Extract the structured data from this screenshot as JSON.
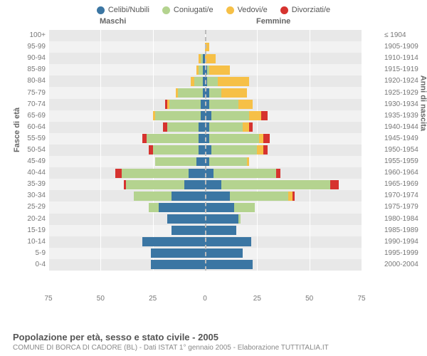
{
  "legend": [
    {
      "label": "Celibi/Nubili",
      "color": "#3b76a3"
    },
    {
      "label": "Coniugati/e",
      "color": "#b4d38f"
    },
    {
      "label": "Vedovi/e",
      "color": "#f6c047"
    },
    {
      "label": "Divorziati/e",
      "color": "#d6332f"
    }
  ],
  "gender_left": "Maschi",
  "gender_right": "Femmine",
  "axis_left_title": "Fasce di età",
  "axis_right_title": "Anni di nascita",
  "x_max": 75,
  "x_ticks_left": [
    75,
    50,
    25,
    0
  ],
  "x_ticks_right": [
    25,
    50,
    75
  ],
  "age_labels": [
    "100+",
    "95-99",
    "90-94",
    "85-89",
    "80-84",
    "75-79",
    "70-74",
    "65-69",
    "60-64",
    "55-59",
    "50-54",
    "45-49",
    "40-44",
    "35-39",
    "30-34",
    "25-29",
    "20-24",
    "15-19",
    "10-14",
    "5-9",
    "0-4"
  ],
  "birth_labels": [
    "≤ 1904",
    "1905-1909",
    "1910-1914",
    "1915-1919",
    "1920-1924",
    "1925-1929",
    "1930-1934",
    "1935-1939",
    "1940-1944",
    "1945-1949",
    "1950-1954",
    "1955-1959",
    "1960-1964",
    "1965-1969",
    "1970-1974",
    "1975-1979",
    "1980-1984",
    "1985-1989",
    "1990-1994",
    "1995-1999",
    "2000-2004"
  ],
  "segment_colors": {
    "single": "#3b76a3",
    "married": "#b4d38f",
    "widowed": "#f6c047",
    "divorced": "#d6332f"
  },
  "grid_colors": {
    "row_even": "#e8e8e8",
    "row_odd": "#f2f2f2",
    "vline": "#ffffff",
    "center": "#bbbbbb"
  },
  "data": [
    {
      "m": {
        "s": 0,
        "m": 0,
        "w": 0,
        "d": 0
      },
      "f": {
        "s": 0,
        "m": 0,
        "w": 0,
        "d": 0
      }
    },
    {
      "m": {
        "s": 0,
        "m": 0,
        "w": 0,
        "d": 0
      },
      "f": {
        "s": 0,
        "m": 0,
        "w": 2,
        "d": 0
      }
    },
    {
      "m": {
        "s": 1,
        "m": 1,
        "w": 1,
        "d": 0
      },
      "f": {
        "s": 0,
        "m": 0,
        "w": 5,
        "d": 0
      }
    },
    {
      "m": {
        "s": 1,
        "m": 2,
        "w": 1,
        "d": 0
      },
      "f": {
        "s": 1,
        "m": 1,
        "w": 10,
        "d": 0
      }
    },
    {
      "m": {
        "s": 1,
        "m": 4,
        "w": 2,
        "d": 0
      },
      "f": {
        "s": 1,
        "m": 5,
        "w": 15,
        "d": 0
      }
    },
    {
      "m": {
        "s": 1,
        "m": 12,
        "w": 1,
        "d": 0
      },
      "f": {
        "s": 2,
        "m": 6,
        "w": 12,
        "d": 0
      }
    },
    {
      "m": {
        "s": 2,
        "m": 15,
        "w": 1,
        "d": 1
      },
      "f": {
        "s": 2,
        "m": 14,
        "w": 7,
        "d": 0
      }
    },
    {
      "m": {
        "s": 2,
        "m": 22,
        "w": 1,
        "d": 0
      },
      "f": {
        "s": 3,
        "m": 18,
        "w": 6,
        "d": 3
      }
    },
    {
      "m": {
        "s": 3,
        "m": 15,
        "w": 0,
        "d": 2
      },
      "f": {
        "s": 2,
        "m": 16,
        "w": 3,
        "d": 2
      }
    },
    {
      "m": {
        "s": 3,
        "m": 25,
        "w": 0,
        "d": 2
      },
      "f": {
        "s": 2,
        "m": 24,
        "w": 2,
        "d": 3
      }
    },
    {
      "m": {
        "s": 3,
        "m": 22,
        "w": 0,
        "d": 2
      },
      "f": {
        "s": 3,
        "m": 22,
        "w": 3,
        "d": 2
      }
    },
    {
      "m": {
        "s": 4,
        "m": 20,
        "w": 0,
        "d": 0
      },
      "f": {
        "s": 2,
        "m": 18,
        "w": 1,
        "d": 0
      }
    },
    {
      "m": {
        "s": 8,
        "m": 32,
        "w": 0,
        "d": 3
      },
      "f": {
        "s": 4,
        "m": 30,
        "w": 0,
        "d": 2
      }
    },
    {
      "m": {
        "s": 10,
        "m": 28,
        "w": 0,
        "d": 1
      },
      "f": {
        "s": 8,
        "m": 52,
        "w": 0,
        "d": 4
      }
    },
    {
      "m": {
        "s": 16,
        "m": 18,
        "w": 0,
        "d": 0
      },
      "f": {
        "s": 12,
        "m": 28,
        "w": 2,
        "d": 1
      }
    },
    {
      "m": {
        "s": 22,
        "m": 5,
        "w": 0,
        "d": 0
      },
      "f": {
        "s": 14,
        "m": 10,
        "w": 0,
        "d": 0
      }
    },
    {
      "m": {
        "s": 18,
        "m": 0,
        "w": 0,
        "d": 0
      },
      "f": {
        "s": 16,
        "m": 1,
        "w": 0,
        "d": 0
      }
    },
    {
      "m": {
        "s": 16,
        "m": 0,
        "w": 0,
        "d": 0
      },
      "f": {
        "s": 15,
        "m": 0,
        "w": 0,
        "d": 0
      }
    },
    {
      "m": {
        "s": 30,
        "m": 0,
        "w": 0,
        "d": 0
      },
      "f": {
        "s": 22,
        "m": 0,
        "w": 0,
        "d": 0
      }
    },
    {
      "m": {
        "s": 26,
        "m": 0,
        "w": 0,
        "d": 0
      },
      "f": {
        "s": 18,
        "m": 0,
        "w": 0,
        "d": 0
      }
    },
    {
      "m": {
        "s": 26,
        "m": 0,
        "w": 0,
        "d": 0
      },
      "f": {
        "s": 23,
        "m": 0,
        "w": 0,
        "d": 0
      }
    }
  ],
  "title": "Popolazione per età, sesso e stato civile - 2005",
  "subtitle": "COMUNE DI BORCA DI CADORE (BL) - Dati ISTAT 1° gennaio 2005 - Elaborazione TUTTITALIA.IT"
}
